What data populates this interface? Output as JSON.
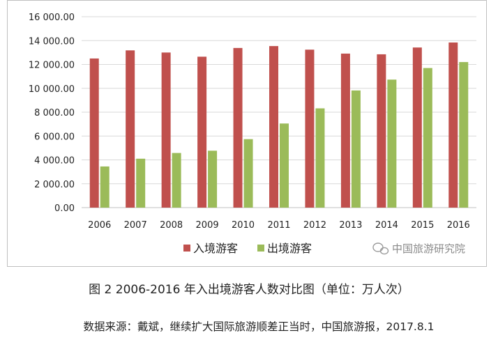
{
  "chart_data": {
    "type": "bar",
    "categories": [
      "2006",
      "2007",
      "2008",
      "2009",
      "2010",
      "2011",
      "2012",
      "2013",
      "2014",
      "2015",
      "2016"
    ],
    "series": [
      {
        "name": "入境游客",
        "color": "#c0504d",
        "values": [
          12500,
          13180,
          13000,
          12650,
          13380,
          13540,
          13240,
          12910,
          12850,
          13420,
          13840
        ]
      },
      {
        "name": "出境游客",
        "color": "#9bbb59",
        "values": [
          3450,
          4100,
          4580,
          4770,
          5740,
          7050,
          8320,
          9820,
          10730,
          11700,
          12200
        ]
      }
    ],
    "ylim": [
      0,
      16000
    ],
    "yticks": [
      0,
      2000,
      4000,
      6000,
      8000,
      10000,
      12000,
      14000,
      16000
    ],
    "ytick_labels": [
      "0.00",
      "2 000.00",
      "4 000.00",
      "6 000.00",
      "8 000.00",
      "10 000.00",
      "12 000.00",
      "14 000.00",
      "16 000.00"
    ],
    "grid": true,
    "legend_position": "bottom"
  },
  "watermark": "中国旅游研究院",
  "caption": "图 2 2006-2016 年入出境游客人数对比图（单位：万人次）",
  "source": "数据来源：戴斌，继续扩大国际旅游顺差正当时，中国旅游报，2017.8.1"
}
